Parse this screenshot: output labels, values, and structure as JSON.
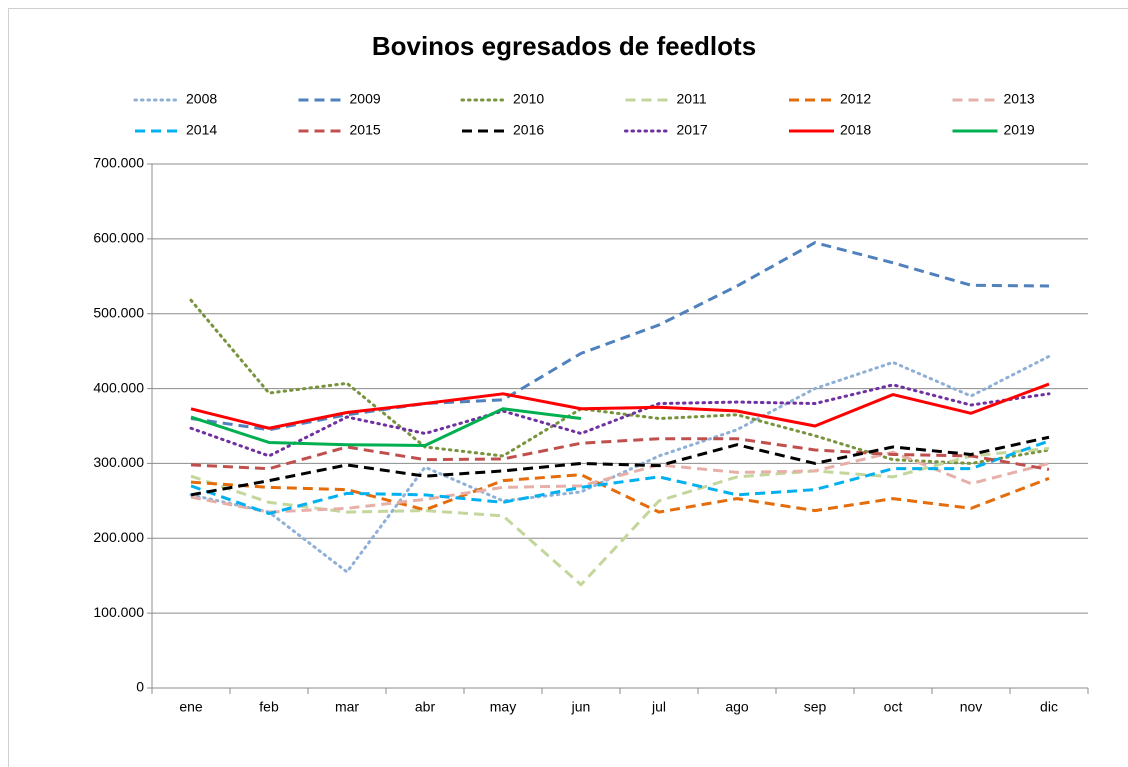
{
  "chart_data": {
    "type": "line",
    "title": "Bovinos egresados de feedlots",
    "categories": [
      "ene",
      "feb",
      "mar",
      "abr",
      "may",
      "jun",
      "jul",
      "ago",
      "sep",
      "oct",
      "nov",
      "dic"
    ],
    "ylim": [
      0,
      700000
    ],
    "yticks": [
      0,
      {
        "value": 100000,
        "label": "100.000"
      },
      {
        "value": 200000,
        "label": "200.000"
      },
      {
        "value": 300000,
        "label": "300.000"
      },
      {
        "value": 400000,
        "label": "400.000"
      },
      {
        "value": 500000,
        "label": "500.000"
      },
      {
        "value": 600000,
        "label": "600.000"
      },
      {
        "value": 700000,
        "label": "700.000"
      }
    ],
    "grid": true,
    "legend": "top",
    "series": [
      {
        "name": "2008",
        "color": "#8fb0d6",
        "style": "dotted",
        "values": [
          258000,
          235000,
          155000,
          295000,
          250000,
          262000,
          310000,
          345000,
          400000,
          435000,
          390000,
          443000
        ]
      },
      {
        "name": "2009",
        "color": "#4f81bd",
        "style": "dashed",
        "values": [
          360000,
          345000,
          365000,
          380000,
          385000,
          447000,
          485000,
          537000,
          595000,
          568000,
          538000,
          537000
        ]
      },
      {
        "name": "2010",
        "color": "#77933c",
        "style": "dotted",
        "values": [
          518000,
          394000,
          407000,
          322000,
          310000,
          373000,
          360000,
          365000,
          337000,
          305000,
          300000,
          318000
        ]
      },
      {
        "name": "2011",
        "color": "#c3d69b",
        "style": "dashed",
        "values": [
          283000,
          248000,
          235000,
          237000,
          230000,
          138000,
          250000,
          282000,
          290000,
          282000,
          310000,
          320000
        ]
      },
      {
        "name": "2012",
        "color": "#e46c0a",
        "style": "dashed",
        "values": [
          275000,
          268000,
          265000,
          238000,
          277000,
          285000,
          235000,
          253000,
          237000,
          253000,
          240000,
          280000
        ]
      },
      {
        "name": "2013",
        "color": "#e6b0a8",
        "style": "dashed",
        "values": [
          255000,
          235000,
          240000,
          252000,
          268000,
          270000,
          298000,
          288000,
          290000,
          315000,
          273000,
          300000
        ]
      },
      {
        "name": "2014",
        "color": "#00b0f0",
        "style": "dashed",
        "values": [
          270000,
          233000,
          260000,
          258000,
          248000,
          268000,
          282000,
          258000,
          265000,
          293000,
          293000,
          330000
        ]
      },
      {
        "name": "2015",
        "color": "#c0504d",
        "style": "dashed",
        "values": [
          298000,
          293000,
          322000,
          305000,
          306000,
          327000,
          333000,
          333000,
          318000,
          312000,
          310000,
          292000
        ]
      },
      {
        "name": "2016",
        "color": "#000000",
        "style": "dashed",
        "values": [
          258000,
          277000,
          298000,
          283000,
          290000,
          300000,
          297000,
          325000,
          300000,
          322000,
          312000,
          335000
        ]
      },
      {
        "name": "2017",
        "color": "#7030a0",
        "style": "dotted",
        "values": [
          347000,
          310000,
          362000,
          340000,
          370000,
          340000,
          380000,
          382000,
          380000,
          405000,
          378000,
          393000
        ]
      },
      {
        "name": "2018",
        "color": "#ff0000",
        "style": "solid",
        "values": [
          373000,
          347000,
          368000,
          380000,
          393000,
          373000,
          375000,
          370000,
          350000,
          392000,
          367000,
          406000
        ]
      },
      {
        "name": "2019",
        "color": "#00b050",
        "style": "solid",
        "values": [
          362000,
          328000,
          325000,
          324000,
          373000,
          360000,
          null,
          null,
          null,
          null,
          null,
          null
        ]
      }
    ]
  }
}
